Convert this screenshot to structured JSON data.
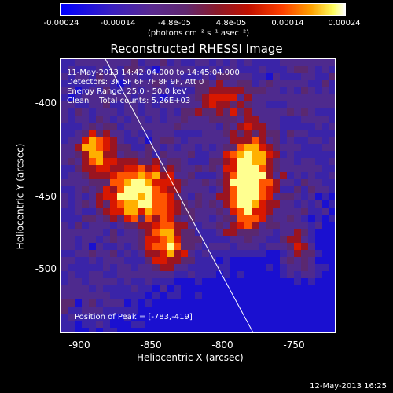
{
  "colorbar": {
    "ticks": [
      "-0.00024",
      "-0.00014",
      "-4.8e-05",
      "4.8e-05",
      "0.00014",
      "0.00024"
    ],
    "units": "(photons cm⁻² s⁻¹ asec⁻²)"
  },
  "title": "Reconstructed RHESSI Image",
  "annotations": {
    "time_range": "11-May-2013 14:42:04.000 to 14:45:04.000",
    "detectors": "Detectors: 3F 5F 6F 7F 8F 9F, Att 0",
    "energy": "Energy Range: 25.0 - 50.0 keV",
    "clean": "Clean    Total counts: 5.26E+03",
    "peak": "Position of Peak = [-783,-419]"
  },
  "axes": {
    "xlabel": "Heliocentric X (arcsec)",
    "ylabel": "Heliocentric Y (arcsec)",
    "xticks": [
      "-900",
      "-850",
      "-800",
      "-750"
    ],
    "yticks": [
      "-400",
      "-450",
      "-500"
    ]
  },
  "date_stamp": "12-May-2013 16:25",
  "colors": {
    "background": "#000000",
    "text": "#ffffff",
    "limb_line": "#ffffff"
  }
}
